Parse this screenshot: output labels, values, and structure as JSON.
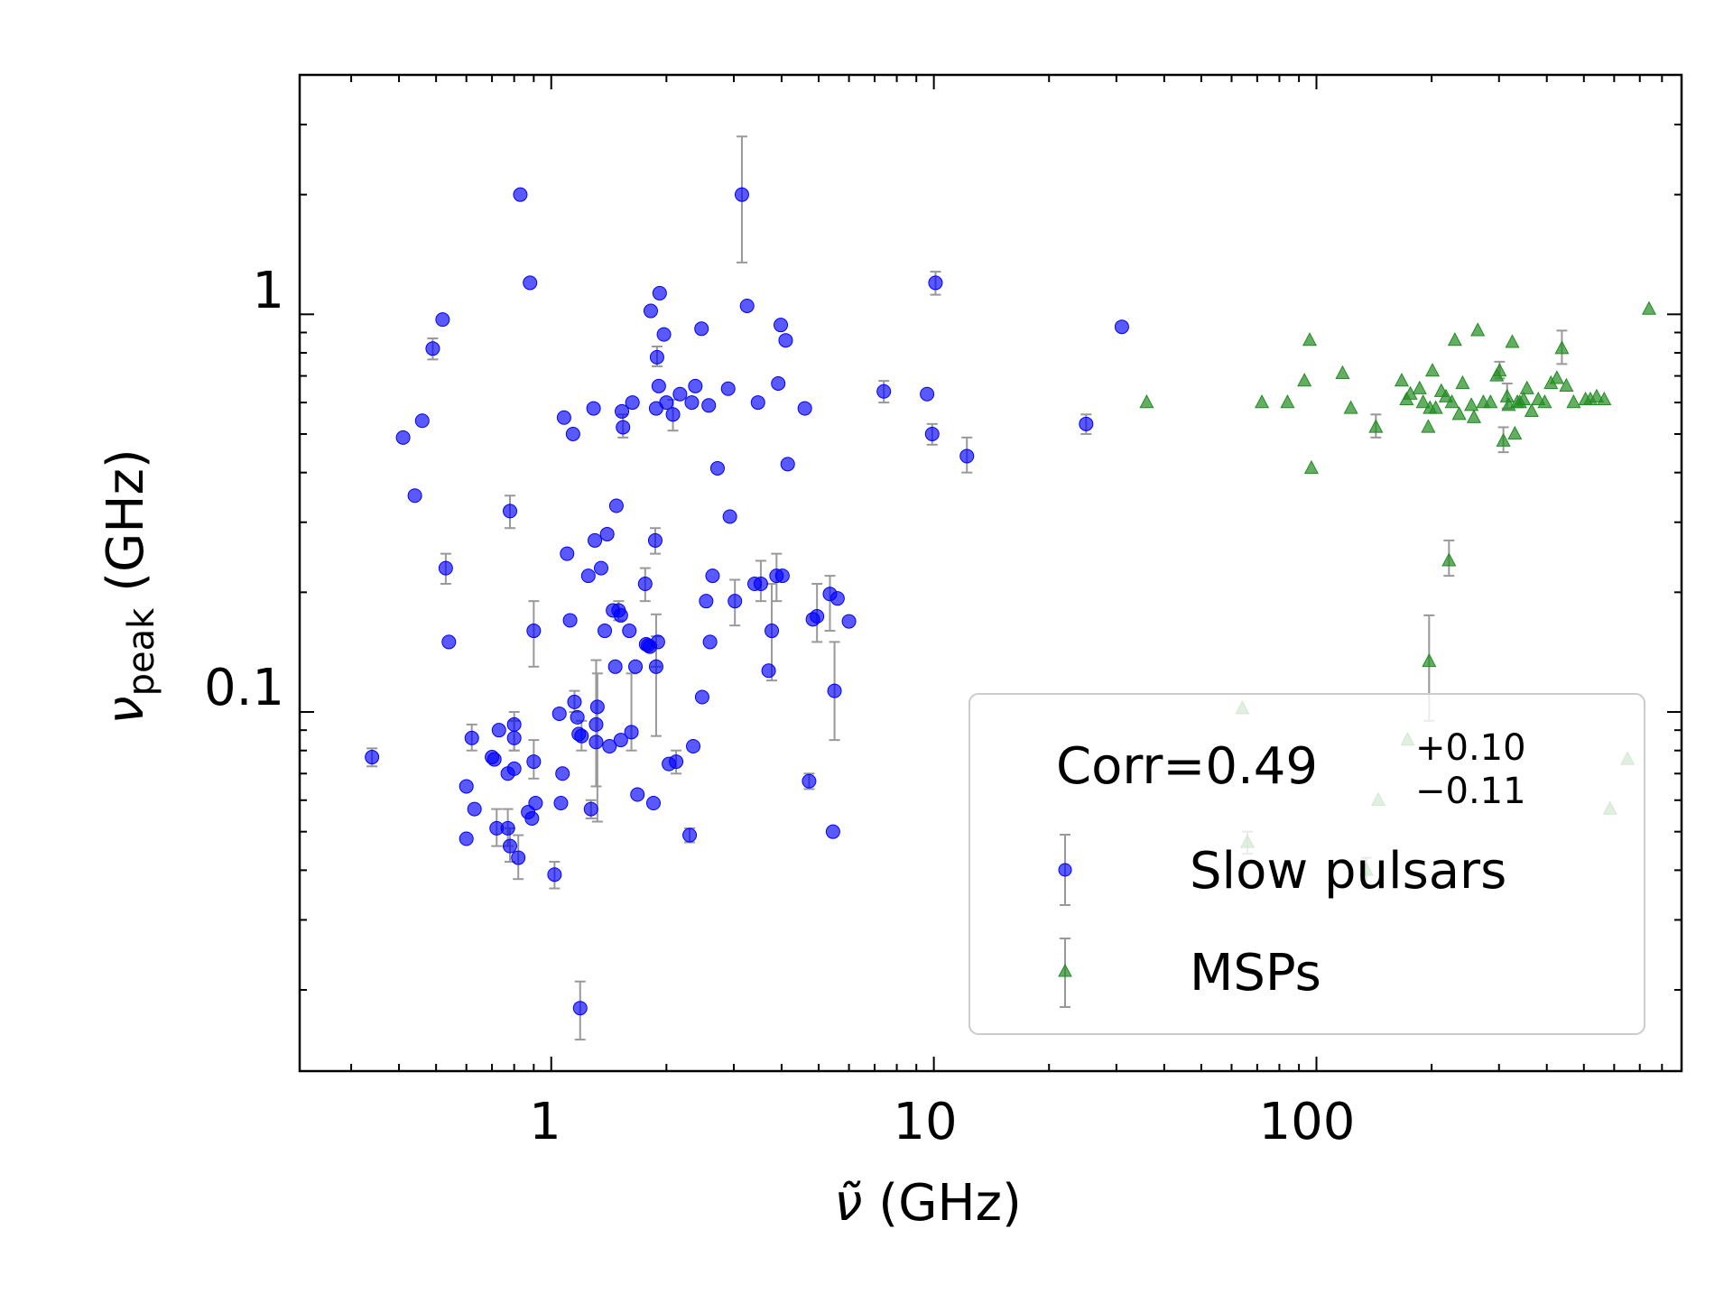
{
  "chart_data": {
    "type": "scatter",
    "title": "",
    "xlabel_symbol": "ν̃",
    "xlabel_unit": "(GHz)",
    "ylabel_symbol": "ν",
    "ylabel_subscript": "peak",
    "ylabel_unit": "(GHz)",
    "xscale": "log",
    "yscale": "log",
    "xlim": [
      0.22,
      900
    ],
    "ylim": [
      0.0125,
      4.0
    ],
    "x_major_ticks": [
      1,
      10,
      100
    ],
    "x_tick_labels": [
      "1",
      "10",
      "100"
    ],
    "y_major_ticks": [
      0.1,
      1
    ],
    "y_tick_labels": [
      "0.1",
      "1"
    ],
    "grid": false,
    "legend": {
      "placement": "lower-right",
      "annotation_prefix": "Corr=0.49",
      "annotation_upper": "+0.10",
      "annotation_lower": "−0.11"
    },
    "series": [
      {
        "name": "Slow pulsars",
        "marker": "circle",
        "color": "#0000ff",
        "errorbar_color": "#999999",
        "points": [
          [
            0.34,
            0.077
          ],
          [
            0.41,
            0.49
          ],
          [
            0.44,
            0.35
          ],
          [
            0.46,
            0.54
          ],
          [
            0.49,
            0.82
          ],
          [
            0.52,
            0.97
          ],
          [
            0.53,
            0.23
          ],
          [
            0.54,
            0.15
          ],
          [
            0.6,
            0.065
          ],
          [
            0.6,
            0.048
          ],
          [
            0.62,
            0.086
          ],
          [
            0.63,
            0.057
          ],
          [
            0.7,
            0.077
          ],
          [
            0.71,
            0.076
          ],
          [
            0.72,
            0.051
          ],
          [
            0.73,
            0.09
          ],
          [
            0.77,
            0.07
          ],
          [
            0.77,
            0.051
          ],
          [
            0.78,
            0.046
          ],
          [
            0.78,
            0.32
          ],
          [
            0.8,
            0.072
          ],
          [
            0.8,
            0.093
          ],
          [
            0.8,
            0.086
          ],
          [
            0.82,
            0.043
          ],
          [
            0.83,
            2.0
          ],
          [
            0.87,
            0.056
          ],
          [
            0.88,
            1.2
          ],
          [
            0.89,
            0.054
          ],
          [
            0.9,
            0.075
          ],
          [
            0.9,
            0.16
          ],
          [
            0.91,
            0.059
          ],
          [
            1.02,
            0.039
          ],
          [
            1.05,
            0.099
          ],
          [
            1.06,
            0.059
          ],
          [
            1.07,
            0.07
          ],
          [
            1.08,
            0.55
          ],
          [
            1.1,
            0.25
          ],
          [
            1.12,
            0.17
          ],
          [
            1.14,
            0.5
          ],
          [
            1.15,
            0.106
          ],
          [
            1.17,
            0.097
          ],
          [
            1.18,
            0.088
          ],
          [
            1.19,
            0.018
          ],
          [
            1.2,
            0.087
          ],
          [
            1.25,
            0.22
          ],
          [
            1.27,
            0.057
          ],
          [
            1.29,
            0.58
          ],
          [
            1.3,
            0.27
          ],
          [
            1.31,
            0.084
          ],
          [
            1.31,
            0.093
          ],
          [
            1.32,
            0.103
          ],
          [
            1.35,
            0.23
          ],
          [
            1.38,
            0.16
          ],
          [
            1.4,
            0.28
          ],
          [
            1.42,
            0.082
          ],
          [
            1.45,
            0.18
          ],
          [
            1.47,
            0.13
          ],
          [
            1.48,
            0.33
          ],
          [
            1.5,
            0.18
          ],
          [
            1.52,
            0.175
          ],
          [
            1.52,
            0.085
          ],
          [
            1.53,
            0.57
          ],
          [
            1.54,
            0.52
          ],
          [
            1.6,
            0.16
          ],
          [
            1.62,
            0.089
          ],
          [
            1.63,
            0.6
          ],
          [
            1.66,
            0.13
          ],
          [
            1.68,
            0.062
          ],
          [
            1.76,
            0.21
          ],
          [
            1.77,
            0.148
          ],
          [
            1.79,
            0.147
          ],
          [
            1.81,
            0.146
          ],
          [
            1.82,
            1.02
          ],
          [
            1.85,
            0.059
          ],
          [
            1.87,
            0.27
          ],
          [
            1.88,
            0.58
          ],
          [
            1.88,
            0.13
          ],
          [
            1.89,
            0.78
          ],
          [
            1.9,
            0.15
          ],
          [
            1.91,
            0.66
          ],
          [
            1.92,
            1.13
          ],
          [
            1.97,
            0.89
          ],
          [
            2.0,
            0.6
          ],
          [
            2.03,
            0.074
          ],
          [
            2.08,
            0.56
          ],
          [
            2.12,
            0.075
          ],
          [
            2.17,
            0.63
          ],
          [
            2.3,
            0.049
          ],
          [
            2.33,
            0.6
          ],
          [
            2.35,
            0.082
          ],
          [
            2.38,
            0.66
          ],
          [
            2.47,
            0.92
          ],
          [
            2.48,
            0.109
          ],
          [
            2.54,
            0.19
          ],
          [
            2.58,
            0.59
          ],
          [
            2.6,
            0.15
          ],
          [
            2.64,
            0.22
          ],
          [
            2.72,
            0.41
          ],
          [
            2.9,
            0.65
          ],
          [
            2.93,
            0.31
          ],
          [
            3.02,
            0.19
          ],
          [
            3.15,
            2.0
          ],
          [
            3.25,
            1.05
          ],
          [
            3.4,
            0.21
          ],
          [
            3.47,
            0.6
          ],
          [
            3.53,
            0.21
          ],
          [
            3.7,
            0.127
          ],
          [
            3.77,
            0.16
          ],
          [
            3.88,
            0.22
          ],
          [
            3.92,
            0.67
          ],
          [
            3.98,
            0.94
          ],
          [
            4.02,
            0.22
          ],
          [
            4.1,
            0.86
          ],
          [
            4.15,
            0.42
          ],
          [
            4.6,
            0.58
          ],
          [
            4.72,
            0.067
          ],
          [
            4.83,
            0.171
          ],
          [
            4.95,
            0.174
          ],
          [
            5.35,
            0.198
          ],
          [
            5.45,
            0.05
          ],
          [
            5.5,
            0.113
          ],
          [
            5.6,
            0.193
          ],
          [
            6.0,
            0.169
          ],
          [
            7.4,
            0.64
          ],
          [
            9.6,
            0.63
          ],
          [
            9.9,
            0.5
          ],
          [
            10.1,
            1.2
          ],
          [
            12.2,
            0.44
          ],
          [
            25.0,
            0.53
          ],
          [
            31.0,
            0.93
          ]
        ],
        "errors": [
          [
            0.34,
            0.073,
            0.081
          ],
          [
            0.49,
            0.77,
            0.87
          ],
          [
            0.53,
            0.21,
            0.25
          ],
          [
            0.62,
            0.08,
            0.093
          ],
          [
            0.72,
            0.046,
            0.057
          ],
          [
            0.77,
            0.046,
            0.057
          ],
          [
            0.78,
            0.042,
            0.051
          ],
          [
            0.78,
            0.29,
            0.35
          ],
          [
            0.8,
            0.08,
            0.095
          ],
          [
            0.8,
            0.08,
            0.1
          ],
          [
            0.82,
            0.038,
            0.049
          ],
          [
            0.9,
            0.068,
            0.085
          ],
          [
            0.9,
            0.13,
            0.19
          ],
          [
            1.02,
            0.036,
            0.042
          ],
          [
            1.15,
            0.1,
            0.113
          ],
          [
            1.2,
            0.08,
            0.095
          ],
          [
            1.19,
            0.015,
            0.021
          ],
          [
            1.27,
            0.054,
            0.06
          ],
          [
            1.31,
            0.065,
            0.135
          ],
          [
            1.32,
            0.053,
            0.125
          ],
          [
            1.5,
            0.17,
            0.19
          ],
          [
            1.62,
            0.08,
            0.125
          ],
          [
            1.54,
            0.49,
            0.56
          ],
          [
            1.76,
            0.19,
            0.23
          ],
          [
            1.87,
            0.25,
            0.29
          ],
          [
            1.88,
            0.087,
            0.176
          ],
          [
            1.89,
            0.74,
            0.83
          ],
          [
            1.88,
            0.13,
            0.155
          ],
          [
            2.08,
            0.51,
            0.61
          ],
          [
            2.12,
            0.07,
            0.08
          ],
          [
            2.3,
            0.047,
            0.051
          ],
          [
            3.02,
            0.165,
            0.215
          ],
          [
            3.15,
            1.35,
            2.8
          ],
          [
            3.53,
            0.19,
            0.24
          ],
          [
            3.77,
            0.12,
            0.21
          ],
          [
            3.88,
            0.19,
            0.25
          ],
          [
            4.72,
            0.064,
            0.07
          ],
          [
            4.95,
            0.15,
            0.21
          ],
          [
            5.35,
            0.16,
            0.22
          ],
          [
            5.5,
            0.085,
            0.15
          ],
          [
            7.4,
            0.6,
            0.68
          ],
          [
            9.9,
            0.47,
            0.53
          ],
          [
            10.1,
            1.12,
            1.28
          ],
          [
            12.2,
            0.4,
            0.49
          ],
          [
            25.0,
            0.5,
            0.56
          ]
        ]
      },
      {
        "name": "MSPs",
        "marker": "triangle",
        "color": "#228b22",
        "errorbar_color": "#999999",
        "points": [
          [
            36,
            0.6
          ],
          [
            64,
            0.102
          ],
          [
            66,
            0.047
          ],
          [
            72,
            0.6
          ],
          [
            84,
            0.6
          ],
          [
            93,
            0.68
          ],
          [
            96,
            0.86
          ],
          [
            97,
            0.41
          ],
          [
            117,
            0.71
          ],
          [
            123,
            0.58
          ],
          [
            135,
            0.04
          ],
          [
            143,
            0.52
          ],
          [
            145,
            0.06
          ],
          [
            167,
            0.68
          ],
          [
            172,
            0.61
          ],
          [
            173,
            0.085
          ],
          [
            176,
            0.63
          ],
          [
            186,
            0.65
          ],
          [
            190,
            0.6
          ],
          [
            196,
            0.52
          ],
          [
            197,
            0.134
          ],
          [
            198,
            0.58
          ],
          [
            201,
            0.72
          ],
          [
            205,
            0.58
          ],
          [
            212,
            0.64
          ],
          [
            218,
            0.62
          ],
          [
            222,
            0.24
          ],
          [
            226,
            0.6
          ],
          [
            230,
            0.86
          ],
          [
            236,
            0.56
          ],
          [
            241,
            0.67
          ],
          [
            254,
            0.59
          ],
          [
            258,
            0.55
          ],
          [
            264,
            0.91
          ],
          [
            273,
            0.6
          ],
          [
            285,
            0.6
          ],
          [
            296,
            0.7
          ],
          [
            301,
            0.72
          ],
          [
            308,
            0.48
          ],
          [
            315,
            0.62
          ],
          [
            318,
            0.59
          ],
          [
            325,
            0.85
          ],
          [
            330,
            0.5
          ],
          [
            335,
            0.6
          ],
          [
            340,
            0.6
          ],
          [
            348,
            0.61
          ],
          [
            355,
            0.65
          ],
          [
            365,
            0.57
          ],
          [
            380,
            0.61
          ],
          [
            395,
            0.6
          ],
          [
            410,
            0.67
          ],
          [
            425,
            0.69
          ],
          [
            438,
            0.82
          ],
          [
            450,
            0.66
          ],
          [
            470,
            0.6
          ],
          [
            505,
            0.61
          ],
          [
            520,
            0.61
          ],
          [
            540,
            0.62
          ],
          [
            565,
            0.61
          ],
          [
            585,
            0.057
          ],
          [
            650,
            0.076
          ],
          [
            740,
            1.03
          ]
        ],
        "errors": [
          [
            197,
            0.095,
            0.175
          ],
          [
            222,
            0.22,
            0.27
          ],
          [
            143,
            0.49,
            0.56
          ],
          [
            315,
            0.58,
            0.67
          ],
          [
            308,
            0.45,
            0.52
          ],
          [
            301,
            0.69,
            0.76
          ],
          [
            438,
            0.75,
            0.91
          ],
          [
            135,
            0.036,
            0.043
          ],
          [
            66,
            0.044,
            0.05
          ]
        ]
      }
    ]
  }
}
